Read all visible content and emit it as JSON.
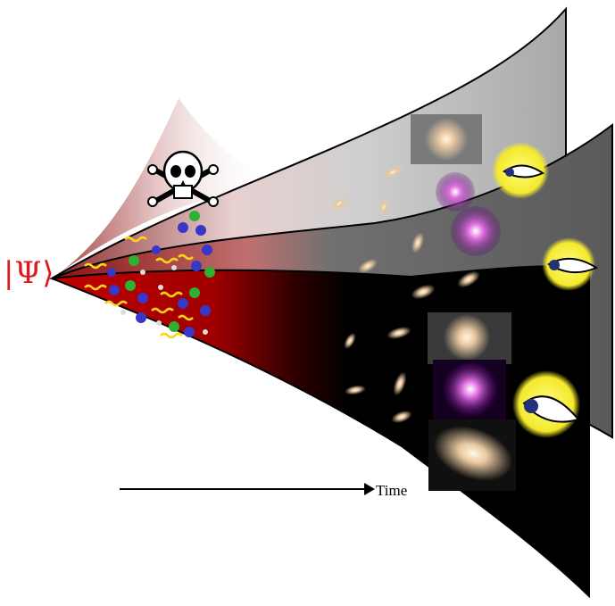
{
  "diagram": {
    "state_label": "|Ψ⟩",
    "time_label": "Time"
  },
  "colors": {
    "psi": "#e0161e",
    "dead_branch": "#c08080",
    "branch_light": "#b0b0b0",
    "branch_mid": "#6a6a6a",
    "branch_dark": "#000000",
    "early_universe_red": "#b00000",
    "observer_eye": "#f5ee3a"
  },
  "icons": {
    "dead_branch_symbol": "skull-and-crossbones-icon",
    "observer_symbol": "eye-icon",
    "galaxy_symbol": "galaxy-icon",
    "photon_symbol": "wavy-arrow-photon-icon",
    "particle_symbol": "particle-dot-icon"
  },
  "branches": [
    {
      "name": "dead-branch",
      "has_observer": false
    },
    {
      "name": "upper-branch",
      "has_observer": true
    },
    {
      "name": "middle-branch",
      "has_observer": true
    },
    {
      "name": "lower-branch",
      "has_observer": true
    }
  ]
}
